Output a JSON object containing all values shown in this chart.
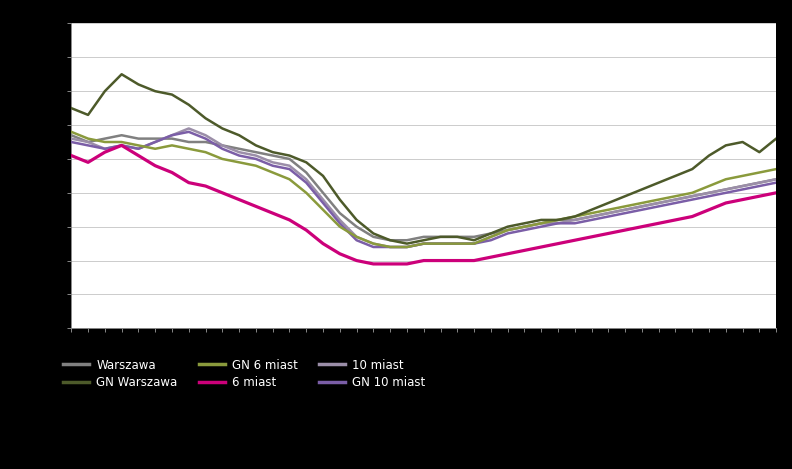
{
  "series": {
    "dark_olive": [
      6.5,
      6.3,
      7.0,
      7.5,
      7.2,
      7.0,
      6.9,
      6.6,
      6.2,
      5.9,
      5.7,
      5.4,
      5.2,
      5.1,
      4.9,
      4.5,
      3.8,
      3.2,
      2.8,
      2.6,
      2.5,
      2.6,
      2.7,
      2.7,
      2.6,
      2.8,
      3.0,
      3.1,
      3.2,
      3.2,
      3.3,
      3.5,
      3.7,
      3.9,
      4.1,
      4.3,
      4.5,
      4.7,
      5.1,
      5.4,
      5.5,
      5.2,
      5.6
    ],
    "light_olive": [
      5.8,
      5.6,
      5.5,
      5.5,
      5.4,
      5.3,
      5.4,
      5.3,
      5.2,
      5.0,
      4.9,
      4.8,
      4.6,
      4.4,
      4.0,
      3.5,
      3.0,
      2.7,
      2.5,
      2.4,
      2.4,
      2.5,
      2.5,
      2.5,
      2.5,
      2.7,
      2.9,
      3.0,
      3.1,
      3.2,
      3.3,
      3.4,
      3.5,
      3.6,
      3.7,
      3.8,
      3.9,
      4.0,
      4.2,
      4.4,
      4.5,
      4.6,
      4.7
    ],
    "dark_gray": [
      5.7,
      5.5,
      5.6,
      5.7,
      5.6,
      5.6,
      5.6,
      5.5,
      5.5,
      5.4,
      5.3,
      5.2,
      5.1,
      5.0,
      4.6,
      4.0,
      3.4,
      3.0,
      2.7,
      2.6,
      2.6,
      2.7,
      2.7,
      2.7,
      2.7,
      2.8,
      2.9,
      3.0,
      3.1,
      3.2,
      3.2,
      3.3,
      3.4,
      3.5,
      3.6,
      3.7,
      3.8,
      3.9,
      4.0,
      4.1,
      4.2,
      4.3,
      4.4
    ],
    "light_purple": [
      5.6,
      5.5,
      5.3,
      5.4,
      5.3,
      5.5,
      5.7,
      5.9,
      5.7,
      5.4,
      5.2,
      5.1,
      4.9,
      4.8,
      4.4,
      3.8,
      3.2,
      2.7,
      2.5,
      2.4,
      2.4,
      2.5,
      2.5,
      2.5,
      2.5,
      2.7,
      2.9,
      3.0,
      3.1,
      3.1,
      3.2,
      3.3,
      3.4,
      3.5,
      3.6,
      3.7,
      3.8,
      3.9,
      4.0,
      4.1,
      4.2,
      4.3,
      4.4
    ],
    "magenta": [
      5.1,
      4.9,
      5.2,
      5.4,
      5.1,
      4.8,
      4.6,
      4.3,
      4.2,
      4.0,
      3.8,
      3.6,
      3.4,
      3.2,
      2.9,
      2.5,
      2.2,
      2.0,
      1.9,
      1.9,
      1.9,
      2.0,
      2.0,
      2.0,
      2.0,
      2.1,
      2.2,
      2.3,
      2.4,
      2.5,
      2.6,
      2.7,
      2.8,
      2.9,
      3.0,
      3.1,
      3.2,
      3.3,
      3.5,
      3.7,
      3.8,
      3.9,
      4.0
    ],
    "purple": [
      5.5,
      5.4,
      5.3,
      5.4,
      5.3,
      5.5,
      5.7,
      5.8,
      5.6,
      5.3,
      5.1,
      5.0,
      4.8,
      4.7,
      4.3,
      3.7,
      3.1,
      2.6,
      2.4,
      2.4,
      2.4,
      2.5,
      2.5,
      2.5,
      2.5,
      2.6,
      2.8,
      2.9,
      3.0,
      3.1,
      3.1,
      3.2,
      3.3,
      3.4,
      3.5,
      3.6,
      3.7,
      3.8,
      3.9,
      4.0,
      4.1,
      4.2,
      4.3
    ]
  },
  "colors": {
    "dark_olive": "#4d5a2a",
    "light_olive": "#8a9a3c",
    "dark_gray": "#808080",
    "light_purple": "#9b8ea8",
    "magenta": "#cc007a",
    "purple": "#7b5ea7"
  },
  "n_points": 43,
  "ylim": [
    0,
    9
  ],
  "ytick_count": 10,
  "bg_color": "#ffffff",
  "fig_bg_color": "#000000",
  "legend_labels": {
    "dark_gray": "Warszawa",
    "magenta": "6 miast",
    "dark_olive": "GN Warszawa",
    "light_purple": "10 miast",
    "light_olive": "GN 6 miast",
    "purple": "GN 10 miast"
  },
  "legend_order": [
    "dark_gray",
    "dark_olive",
    "light_olive",
    "magenta",
    "light_purple",
    "purple"
  ],
  "grid_color": "#cccccc",
  "tick_color": "#888888",
  "linewidth": 1.8,
  "linewidth_magenta": 2.3
}
